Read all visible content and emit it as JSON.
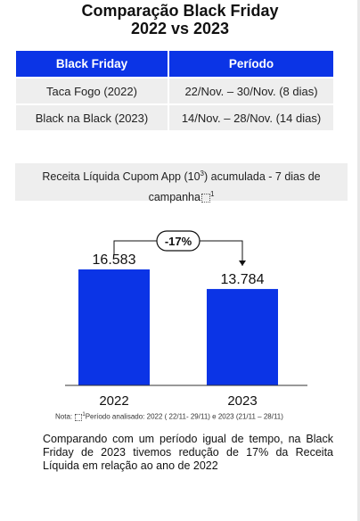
{
  "title": {
    "line1": "Comparação Black Friday",
    "line2": "2022 vs 2023"
  },
  "table": {
    "headers": [
      "Black Friday",
      "Período"
    ],
    "rows": [
      [
        "Taca Fogo (2022)",
        "22/Nov. – 30/Nov. (8 dias)"
      ],
      [
        "Black na Black (2023)",
        "14/Nov. –  28/Nov. (14 dias)"
      ]
    ]
  },
  "chart_caption": {
    "text_before": "Receita Líquida Cupom App (10",
    "sup": "3",
    "text_after": ") acumulada - 7 dias de campanha",
    "footnote_mark": "1"
  },
  "chart_data": {
    "type": "bar",
    "categories": [
      "2022",
      "2023"
    ],
    "values": [
      16583,
      13784
    ],
    "value_labels": [
      "16.583",
      "13.784"
    ],
    "change_label": "-17%",
    "colors": {
      "bar": "#0b34e6",
      "header": "#0b34e6"
    }
  },
  "note": {
    "prefix": "Nota: ",
    "mark": "1",
    "text": "Período analisado: 2022 ( 22/11- 29/11) e 2023 (21/11 – 28/11)"
  },
  "summary": "Comparando com um período igual de tempo, na Black Friday de 2023 tivemos redução de 17% da Receita Líquida em relação ao ano de 2022"
}
